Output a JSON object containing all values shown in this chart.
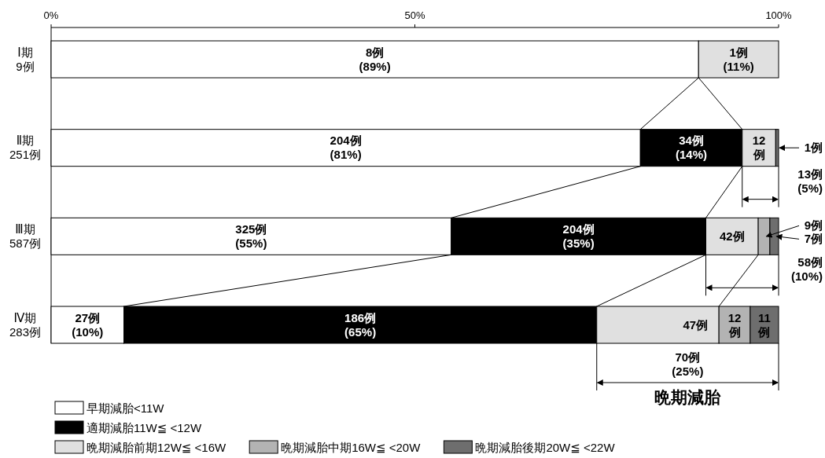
{
  "chart_data": {
    "type": "bar",
    "orientation": "horizontal",
    "stacked": true,
    "legend": "bottom",
    "grid": false,
    "categories": [
      "Ⅰ期\n9例",
      "Ⅱ期\n251例",
      "Ⅲ期\n587例",
      "Ⅳ期\n283例"
    ],
    "xlim": [
      0,
      100
    ],
    "xticks": [
      {
        "value": 0,
        "label": "0%"
      },
      {
        "value": 50,
        "label": "50%"
      },
      {
        "value": 100,
        "label": "100%"
      }
    ],
    "series": [
      {
        "name": "早期減胎<11W",
        "color": "#ffffff",
        "values": [
          89,
          81,
          55,
          10
        ],
        "value_labels": [
          "8例\n(89%)",
          "204例\n(81%)",
          "325例\n(55%)",
          "27例\n(10%)"
        ]
      },
      {
        "name": "適期減胎11W≦ <12W",
        "color": "#000000",
        "values": [
          null,
          14,
          35,
          65
        ],
        "value_labels": [
          null,
          "34例\n(14%)",
          "204例\n(35%)",
          "186例\n(65%)"
        ]
      },
      {
        "name": "晩期減胎前期12W≦ <16W",
        "color": "#e0e0e0",
        "values": [
          11,
          4.6,
          7.2,
          16.8
        ],
        "value_labels": [
          "1例\n(11%)",
          null,
          null,
          null
        ]
      },
      {
        "name": "晩期減胎中期16W≦ <20W",
        "color": "#b3b3b3",
        "values": [
          null,
          null,
          1.6,
          4.3
        ]
      },
      {
        "name": "晩期減胎後期20W≦ <22W",
        "color": "#6e6e6e",
        "values": [
          null,
          0.4,
          1.2,
          3.9
        ]
      }
    ],
    "annotations": [
      "13例\n(5%)",
      "58例\n(10%)",
      "70例\n(25%)",
      "晩期減胎",
      {
        "text": "12\n例",
        "x": 99.6,
        "y": "Ⅱ期\n251例"
      },
      {
        "text": "1例",
        "x": 100,
        "y": "Ⅱ期\n251例"
      },
      {
        "text": "42例",
        "x": 97.2,
        "y": "Ⅲ期\n587例"
      },
      {
        "text": "9例",
        "x": 98.8,
        "y": "Ⅲ期\n587例"
      },
      {
        "text": "7例",
        "x": 100,
        "y": "Ⅲ期\n587例"
      },
      {
        "text": "47例",
        "x": 91.8,
        "y": "Ⅳ期\n283例"
      },
      {
        "text": "12\n例",
        "x": 96.1,
        "y": "Ⅳ期\n283例"
      },
      {
        "text": "11\n例",
        "x": 100,
        "y": "Ⅳ期\n283例"
      }
    ]
  }
}
